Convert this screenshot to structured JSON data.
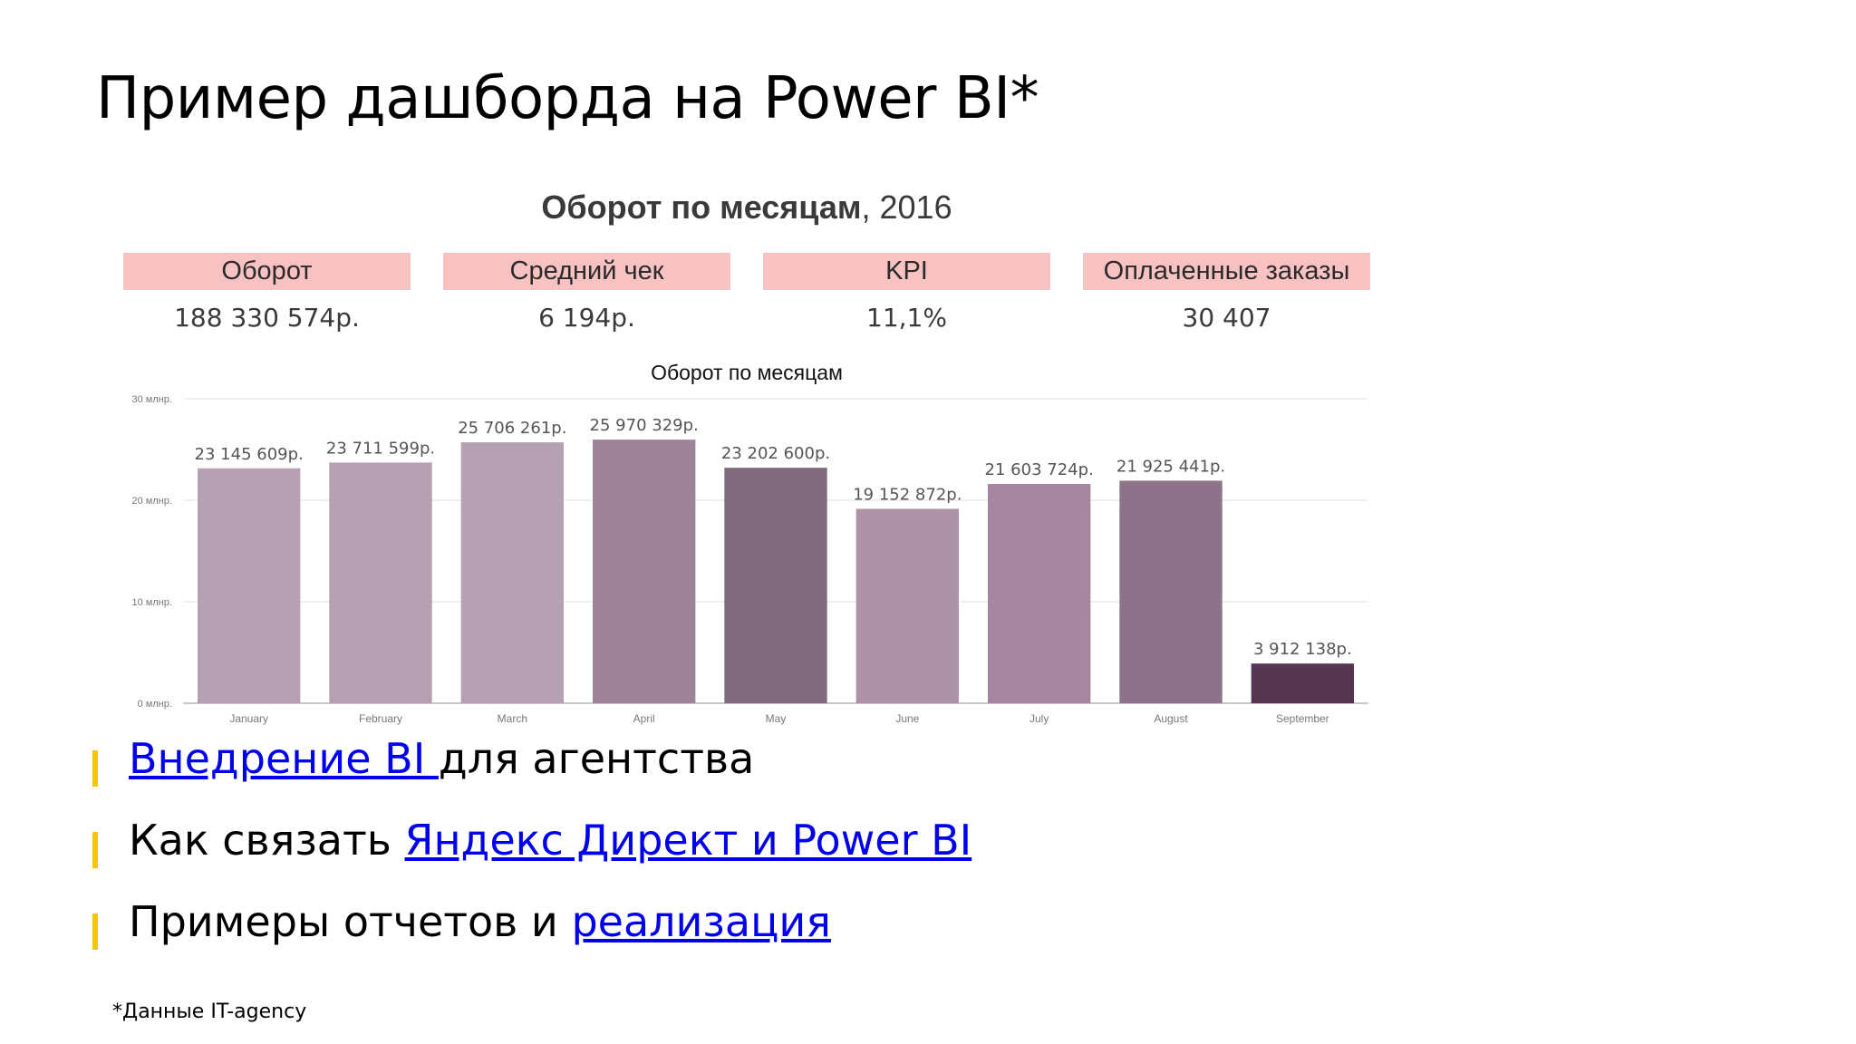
{
  "slide": {
    "title": "Пример дашборда на Power BI*",
    "footnote": "*Данные IT-agency"
  },
  "dashboard": {
    "heading_bold": "Оборот по месяцам",
    "heading_rest": ", 2016",
    "kpis": [
      {
        "label": "Оборот",
        "value": "188 330 574р."
      },
      {
        "label": "Средний чек",
        "value": "6 194р."
      },
      {
        "label": "KPI",
        "value": "11,1%"
      },
      {
        "label": "Оплаченные заказы",
        "value": "30 407"
      }
    ],
    "kpi_color": "#f9c2c2"
  },
  "chart_data": {
    "type": "bar",
    "title": "Оборот по месяцам",
    "categories": [
      "January",
      "February",
      "March",
      "April",
      "May",
      "June",
      "July",
      "August",
      "September"
    ],
    "values": [
      23145609,
      23711599,
      25706261,
      25970329,
      23202600,
      19152872,
      21603724,
      21925441,
      3912138
    ],
    "data_labels": [
      "23 145 609р.",
      "23 711 599р.",
      "25 706 261р.",
      "25 970 329р.",
      "23 202 600р.",
      "19 152 872р.",
      "21 603 724р.",
      "21 925 441р.",
      "3 912 138р."
    ],
    "bar_colors": [
      "#b5a1b2",
      "#b5a1b2",
      "#b5a1b2",
      "#9d8499",
      "#816a7e",
      "#ae92a8",
      "#a5869e",
      "#8c7389",
      "#55354f"
    ],
    "yticks": [
      0,
      10000000,
      20000000,
      30000000
    ],
    "ytick_labels": [
      "0 млнр.",
      "10 млнр.",
      "20 млнр.",
      "30 млнр."
    ],
    "ylim": [
      0,
      30000000
    ],
    "grid": true
  },
  "bullets": [
    {
      "link": "Внедрение BI ",
      "after": "для агентства"
    },
    {
      "before": "Как связать ",
      "link": "Яндекс Директ и Power BI"
    },
    {
      "before": "Примеры отчетов и ",
      "link": "реализация"
    }
  ],
  "colors": {
    "bullet_marker": "#f7c600",
    "link": "#0000ee"
  }
}
